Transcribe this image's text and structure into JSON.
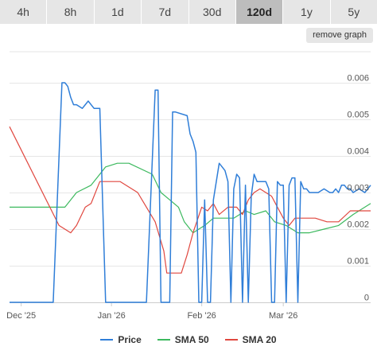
{
  "tabs": [
    {
      "label": "4h",
      "active": false
    },
    {
      "label": "8h",
      "active": false
    },
    {
      "label": "1d",
      "active": false
    },
    {
      "label": "7d",
      "active": false
    },
    {
      "label": "30d",
      "active": false
    },
    {
      "label": "120d",
      "active": true
    },
    {
      "label": "1y",
      "active": false
    },
    {
      "label": "5y",
      "active": false
    }
  ],
  "remove_graph_label": "remove graph",
  "chart_data": {
    "type": "line",
    "x_tick_labels": [
      "Dec '25",
      "Jan '26",
      "Feb '26",
      "Mar '26"
    ],
    "y_tick_labels": [
      "0",
      "0.001",
      "0.002",
      "0.003",
      "0.004",
      "0.005",
      "0.006"
    ],
    "ylim": [
      0,
      0.006
    ],
    "x_range": [
      "2025-11-27",
      "2026-03-31"
    ],
    "grid": "horizontal",
    "legend_position": "bottom",
    "series": [
      {
        "name": "Price",
        "color": "#2f7ed8",
        "x": [
          "2025-11-27",
          "2025-12-12",
          "2025-12-15",
          "2025-12-16",
          "2025-12-17",
          "2025-12-18",
          "2025-12-19",
          "2025-12-20",
          "2025-12-22",
          "2025-12-23",
          "2025-12-24",
          "2025-12-26",
          "2025-12-27",
          "2025-12-28",
          "2025-12-30",
          "2026-01-06",
          "2026-01-13",
          "2026-01-16",
          "2026-01-17",
          "2026-01-18",
          "2026-01-19",
          "2026-01-21",
          "2026-01-22",
          "2026-01-23",
          "2026-01-27",
          "2026-01-28",
          "2026-01-29",
          "2026-01-30",
          "2026-01-31",
          "2026-02-01",
          "2026-02-02",
          "2026-02-03",
          "2026-02-04",
          "2026-02-05",
          "2026-02-07",
          "2026-02-08",
          "2026-02-09",
          "2026-02-10",
          "2026-02-11",
          "2026-02-12",
          "2026-02-13",
          "2026-02-14",
          "2026-02-15",
          "2026-02-16",
          "2026-02-17",
          "2026-02-18",
          "2026-02-19",
          "2026-02-20",
          "2026-02-22",
          "2026-02-23",
          "2026-02-24",
          "2026-02-25",
          "2026-02-26",
          "2026-02-27",
          "2026-02-28",
          "2026-03-01",
          "2026-03-02",
          "2026-03-03",
          "2026-03-04",
          "2026-03-05",
          "2026-03-06",
          "2026-03-07",
          "2026-03-08",
          "2026-03-09",
          "2026-03-10",
          "2026-03-11",
          "2026-03-13",
          "2026-03-15",
          "2026-03-17",
          "2026-03-18",
          "2026-03-19",
          "2026-03-20",
          "2026-03-21",
          "2026-03-22",
          "2026-03-23",
          "2026-03-24",
          "2026-03-25",
          "2026-03-27",
          "2026-03-29",
          "2026-03-31"
        ],
        "values": [
          0,
          0,
          0.006,
          0.006,
          0.0059,
          0.0056,
          0.0054,
          0.0054,
          0.0053,
          0.0054,
          0.0055,
          0.0053,
          0.0053,
          0.0053,
          0,
          0,
          0,
          0.0058,
          0.0058,
          0,
          0,
          0,
          0.0052,
          0.0052,
          0.0051,
          0.0046,
          0.0044,
          0.0041,
          0,
          0,
          0.0028,
          0,
          0,
          0.0028,
          0.0038,
          0.0037,
          0.0036,
          0.0033,
          0,
          0.0031,
          0.0035,
          0.0034,
          0,
          0.0032,
          0,
          0.0029,
          0.0035,
          0.0033,
          0.0033,
          0.0033,
          0.0031,
          0,
          0,
          0.0033,
          0.0032,
          0.0032,
          0,
          0.0032,
          0.0034,
          0.0034,
          0,
          0.0033,
          0.0031,
          0.0031,
          0.003,
          0.003,
          0.003,
          0.0031,
          0.003,
          0.003,
          0.0031,
          0.003,
          0.0032,
          0.0032,
          0.0031,
          0.0031,
          0.003,
          0.0031,
          0.003,
          0.0032
        ]
      },
      {
        "name": "SMA 50",
        "color": "#3cb95e",
        "x": [
          "2025-11-27",
          "2025-12-12",
          "2025-12-16",
          "2025-12-20",
          "2025-12-25",
          "2025-12-28",
          "2025-12-30",
          "2026-01-03",
          "2026-01-07",
          "2026-01-15",
          "2026-01-18",
          "2026-01-21",
          "2026-01-24",
          "2026-01-26",
          "2026-01-29",
          "2026-02-02",
          "2026-02-05",
          "2026-02-09",
          "2026-02-12",
          "2026-02-16",
          "2026-02-19",
          "2026-02-23",
          "2026-02-26",
          "2026-03-02",
          "2026-03-06",
          "2026-03-10",
          "2026-03-15",
          "2026-03-20",
          "2026-03-25",
          "2026-03-31"
        ],
        "values": [
          0.0026,
          0.0026,
          0.0026,
          0.003,
          0.0032,
          0.0035,
          0.0037,
          0.0038,
          0.0038,
          0.0035,
          0.003,
          0.0028,
          0.0026,
          0.0022,
          0.0019,
          0.0021,
          0.0023,
          0.0023,
          0.0023,
          0.0025,
          0.0024,
          0.0025,
          0.0022,
          0.0021,
          0.0019,
          0.0019,
          0.002,
          0.0021,
          0.0024,
          0.0027
        ]
      },
      {
        "name": "SMA 20",
        "color": "#e0473f",
        "x": [
          "2025-11-27",
          "2025-12-14",
          "2025-12-18",
          "2025-12-20",
          "2025-12-23",
          "2025-12-25",
          "2025-12-28",
          "2025-12-31",
          "2026-01-04",
          "2026-01-10",
          "2026-01-16",
          "2026-01-19",
          "2026-01-20",
          "2026-01-25",
          "2026-01-27",
          "2026-01-29",
          "2026-02-01",
          "2026-02-03",
          "2026-02-05",
          "2026-02-07",
          "2026-02-10",
          "2026-02-13",
          "2026-02-15",
          "2026-02-17",
          "2026-02-19",
          "2026-02-21",
          "2026-02-23",
          "2026-02-25",
          "2026-02-27",
          "2026-03-01",
          "2026-03-03",
          "2026-03-05",
          "2026-03-08",
          "2026-03-12",
          "2026-03-16",
          "2026-03-20",
          "2026-03-24",
          "2026-03-27",
          "2026-03-31"
        ],
        "values": [
          0.0048,
          0.0021,
          0.0019,
          0.0021,
          0.0026,
          0.0027,
          0.0033,
          0.0033,
          0.0033,
          0.003,
          0.0022,
          0.0014,
          0.0008,
          0.0008,
          0.0013,
          0.0019,
          0.0026,
          0.0025,
          0.0027,
          0.0024,
          0.0026,
          0.0026,
          0.0024,
          0.0028,
          0.003,
          0.0031,
          0.003,
          0.0029,
          0.0026,
          0.0023,
          0.0021,
          0.0023,
          0.0023,
          0.0023,
          0.0022,
          0.0022,
          0.0025,
          0.0025,
          0.0025
        ]
      }
    ]
  }
}
